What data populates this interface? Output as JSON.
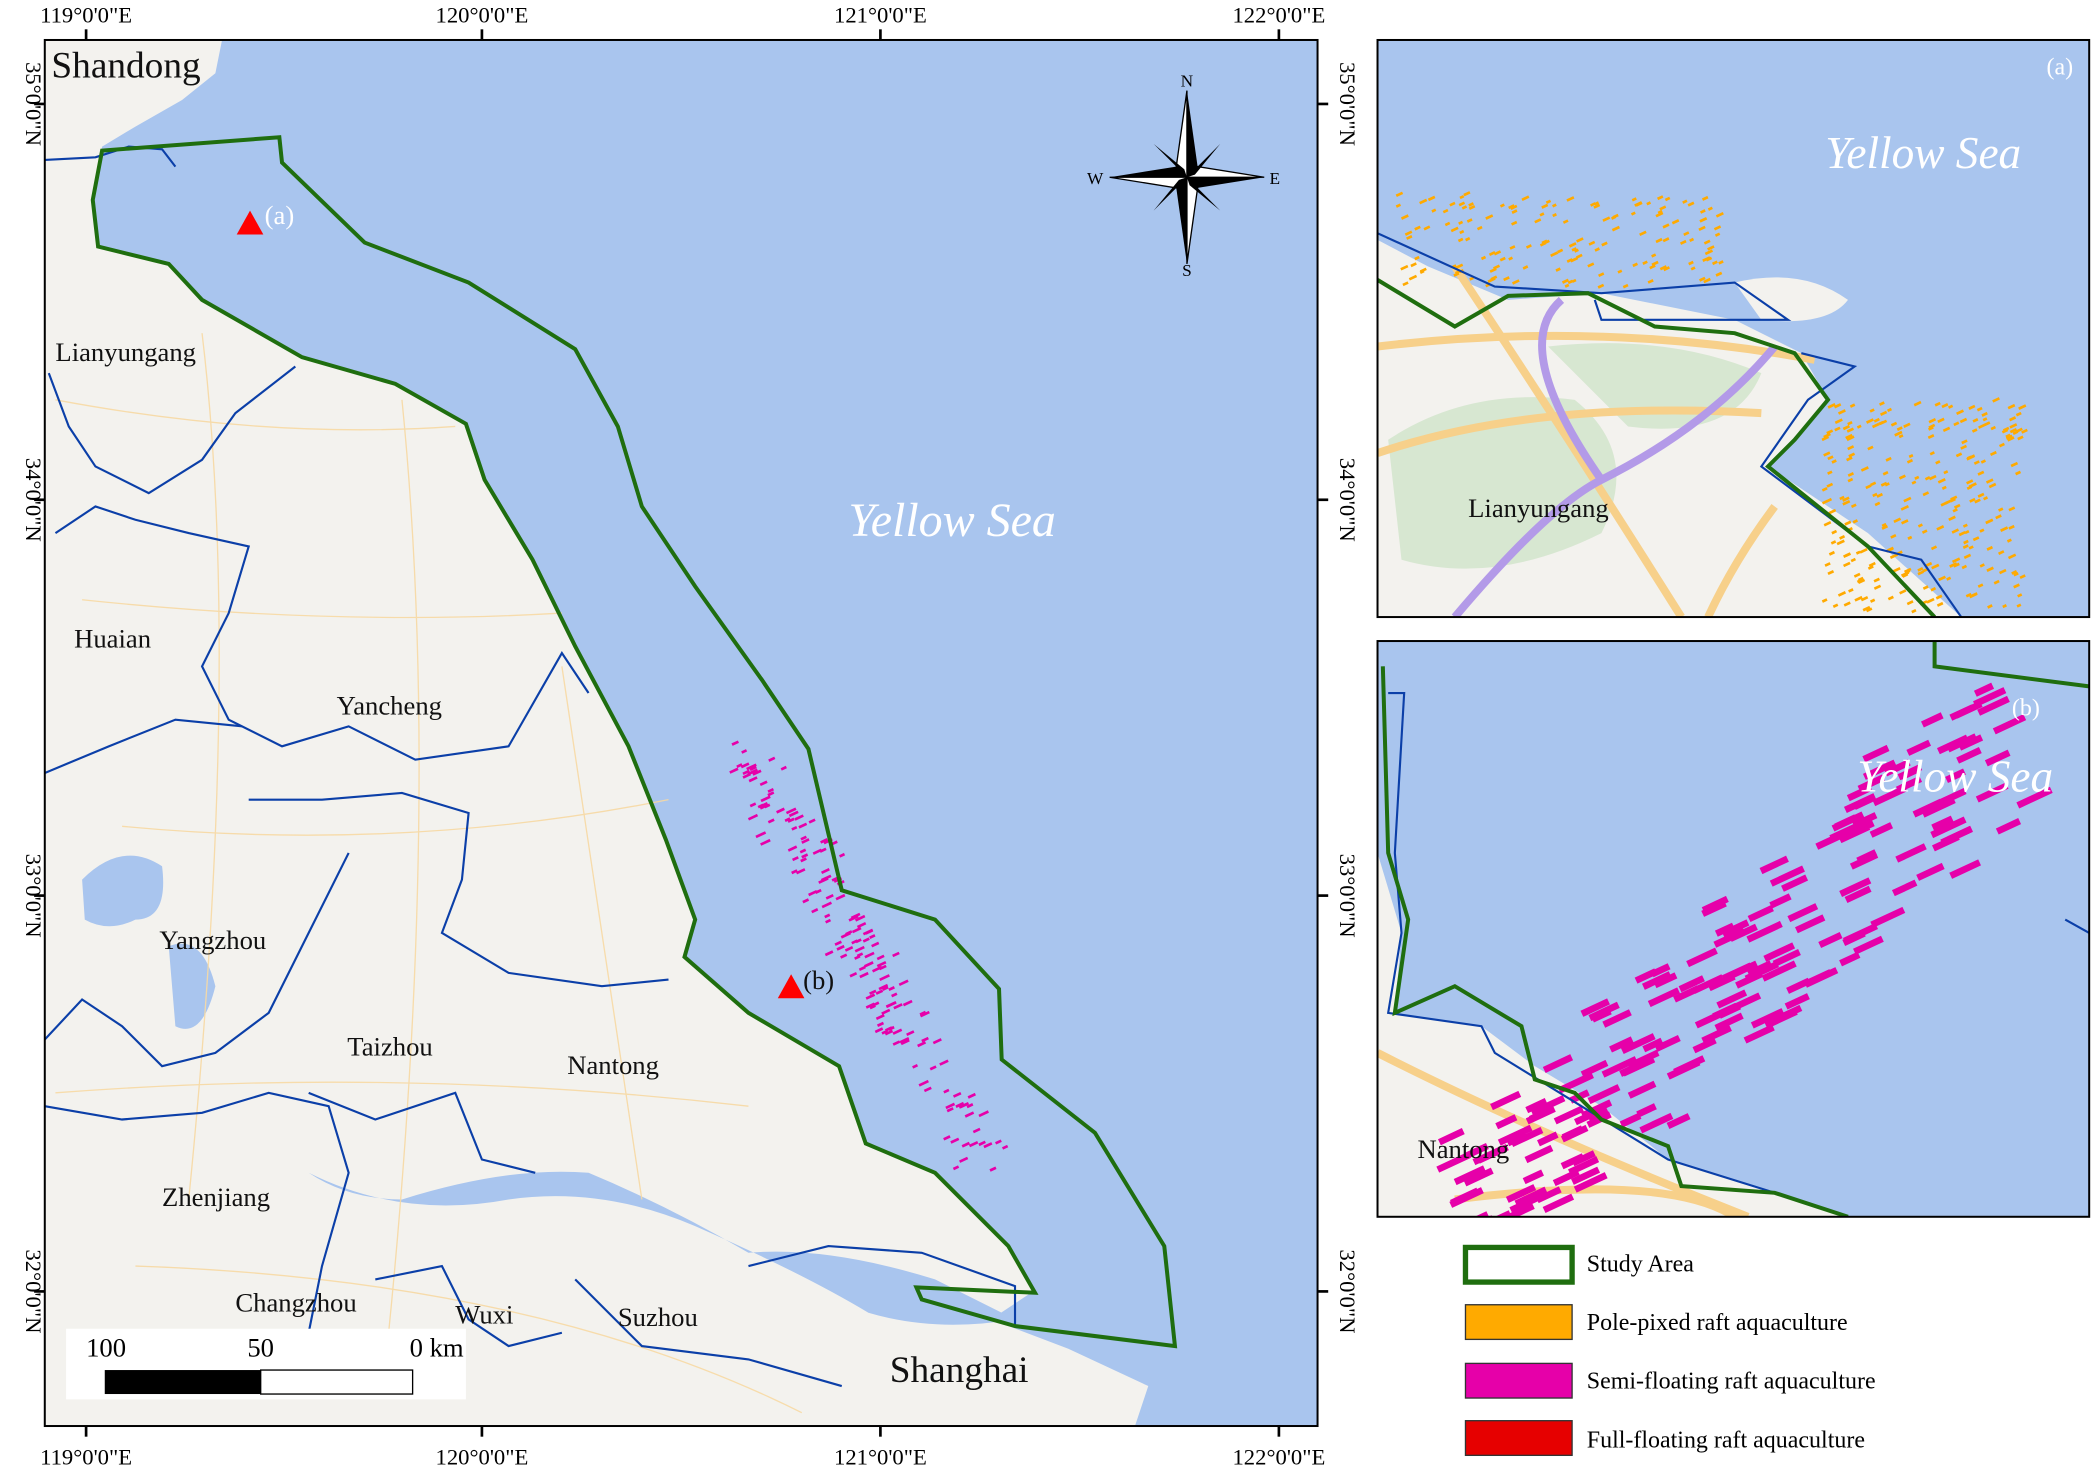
{
  "main_map": {
    "top_ticks": [
      "119°0'0\"E",
      "120°0'0\"E",
      "121°0'0\"E",
      "122°0'0\"E"
    ],
    "bottom_ticks": [
      "119°0'0\"E",
      "120°0'0\"E",
      "121°0'0\"E",
      "122°0'0\"E"
    ],
    "left_ticks": [
      "35°0'0\"N",
      "34°0'0\"N",
      "33°0'0\"N",
      "32°0'0\"N"
    ],
    "right_ticks": [
      "35°0'0\"N",
      "34°0'0\"N",
      "33°0'0\"N",
      "32°0'0\"N"
    ],
    "sea_label": "Yellow Sea",
    "places": [
      "Shandong",
      "Lianyungang",
      "Huaian",
      "Yancheng",
      "Yangzhou",
      "Taizhou",
      "Nantong",
      "Zhenjiang",
      "Changzhou",
      "Wuxi",
      "Suzhou",
      "Shanghai"
    ],
    "markers": [
      "(a)",
      "(b)"
    ],
    "compass": {
      "n": "N",
      "s": "S",
      "e": "E",
      "w": "W"
    },
    "scale_bar": {
      "labels": [
        "100",
        "50",
        "0 km"
      ]
    }
  },
  "inset_a": {
    "tag": "(a)",
    "sea_label": "Yellow Sea",
    "place": "Lianyungang"
  },
  "inset_b": {
    "tag": "(b)",
    "sea_label": "Yellow Sea",
    "place": "Nantong"
  },
  "legend": {
    "items": [
      {
        "label": "Study Area",
        "color": "#1f6e0f"
      },
      {
        "label": "Pole-pixed raft aquaculture",
        "color": "#ffaa00"
      },
      {
        "label": "Semi-floating raft aquaculture",
        "color": "#e600a9"
      },
      {
        "label": "Full-floating raft aquaculture",
        "color": "#e60000"
      }
    ]
  },
  "colors": {
    "sea": "#a9c5ee",
    "land": "#f3f2ee",
    "boundary": "#0b3fa8",
    "study_area": "#1f6e0f"
  }
}
